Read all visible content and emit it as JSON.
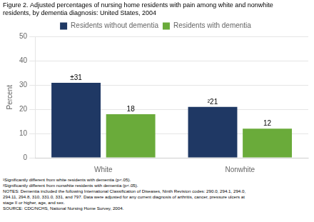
{
  "chart_data": {
    "type": "bar",
    "title": [
      "Figure 2. Adjusted percentages of nursing home residents with pain among white and nonwhite",
      "residents, by dementia diagnosis: United States, 2004"
    ],
    "categories": [
      "White",
      "Nonwhite"
    ],
    "series": [
      {
        "name": "Residents without dementia",
        "color": "#1F3864",
        "values": [
          31,
          21
        ],
        "value_labels": [
          "±31",
          "²21"
        ]
      },
      {
        "name": "Residents with dementia",
        "color": "#6AAB3A",
        "values": [
          18,
          12
        ]
      }
    ],
    "y_label": "Percent",
    "ylim": [
      0,
      50
    ],
    "yticks": [
      0,
      10,
      20,
      30,
      40,
      50
    ],
    "grid": true,
    "legend": "top",
    "data_labels": true,
    "footnotes": [
      "¹Significantly different from white residents with dementia (p<.05).",
      "²Significantly different from nonwhite residents with dementia (p<.05).",
      "NOTES: Dementia included the following ​International Classification of Diseases, Ninth Revision​ codes: 290.0, 294.1, 294.0,",
      "294.11, 294.8, 310, 331.0, 331, and 797. Data were adjusted for any current diagnosis of arthritis, cancer, pressure ulcers at",
      "stage II or higher, age, and sex.",
      "SOURCE: CDC/NCHS, National Nursing Home Survey, 2004."
    ]
  }
}
